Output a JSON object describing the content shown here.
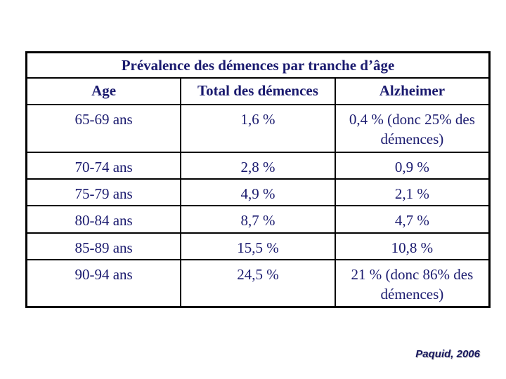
{
  "page": {
    "background": "#ffffff"
  },
  "table": {
    "title": "Prévalence des démences par tranche d’âge",
    "title_color": "#35b9dc",
    "text_color": "#1b1b6f",
    "border_color": "#000000",
    "columns": [
      "Age",
      "Total des démences",
      "Alzheimer"
    ],
    "rows": [
      {
        "age": "65-69 ans",
        "total": "1,6 %",
        "alzheimer": "0,4 % (donc 25% des démences)"
      },
      {
        "age": "70-74 ans",
        "total": "2,8 %",
        "alzheimer": "0,9 %"
      },
      {
        "age": "75-79 ans",
        "total": "4,9 %",
        "alzheimer": "2,1 %"
      },
      {
        "age": "80-84 ans",
        "total": "8,7 %",
        "alzheimer": "4,7 %"
      },
      {
        "age": "85-89 ans",
        "total": "15,5 %",
        "alzheimer": "10,8 %"
      },
      {
        "age": "90-94 ans",
        "total": "24,5 %",
        "alzheimer": "21 % (donc 86% des démences)"
      }
    ]
  },
  "footer": {
    "citation": "Paquid, 2006"
  },
  "chart_data": {
    "type": "table",
    "title": "Prévalence des démences par tranche d’âge",
    "columns": [
      "Age",
      "Total des démences",
      "Alzheimer"
    ],
    "categories": [
      "65-69 ans",
      "70-74 ans",
      "75-79 ans",
      "80-84 ans",
      "85-89 ans",
      "90-94 ans"
    ],
    "series": [
      {
        "name": "Total des démences (%)",
        "values": [
          1.6,
          2.8,
          4.9,
          8.7,
          15.5,
          24.5
        ]
      },
      {
        "name": "Alzheimer (%)",
        "values": [
          0.4,
          0.9,
          2.1,
          4.7,
          10.8,
          21
        ]
      }
    ],
    "annotations": [
      "0,4 % (donc 25% des démences)",
      "21 % (donc 86% des démences)"
    ],
    "source": "Paquid, 2006"
  }
}
